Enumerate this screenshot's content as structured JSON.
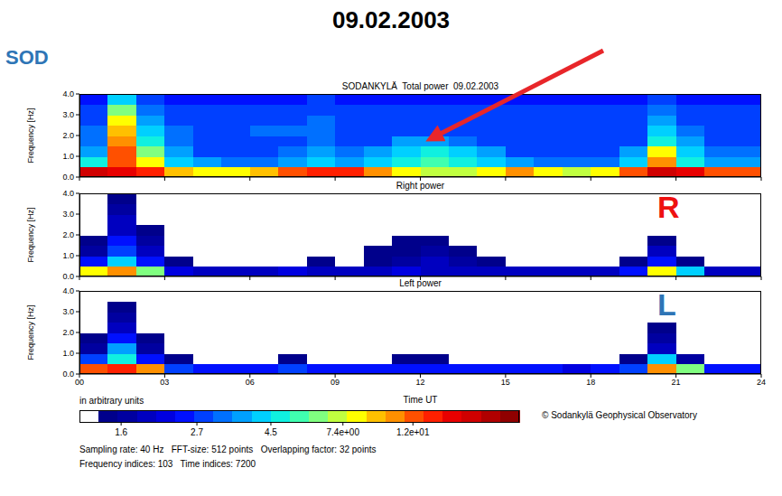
{
  "title": "09.02.2003",
  "label": "SOD",
  "chart_data": [
    {
      "type": "heatmap",
      "title": "SODANKYLÄ  Total power  09.02.2003",
      "ylabel": "Frequency [Hz]",
      "xlim": [
        0,
        24
      ],
      "xticks": [
        {
          "value": 0,
          "label": "00"
        },
        {
          "value": 3,
          "label": "03"
        },
        {
          "value": 6,
          "label": "06"
        },
        {
          "value": 9,
          "label": "09"
        },
        12,
        15,
        18,
        21,
        24
      ],
      "ylim": [
        0,
        4
      ],
      "yticks": [
        {
          "value": 0,
          "label": "0.0"
        },
        {
          "value": 1,
          "label": "1.0"
        },
        {
          "value": 2,
          "label": "2.0"
        },
        {
          "value": 3,
          "label": "3.0"
        },
        {
          "value": 4,
          "label": "4.0"
        }
      ],
      "tick_labels": "y",
      "x_bins": [
        0,
        1,
        2,
        3,
        4,
        5,
        6,
        7,
        8,
        9,
        10,
        11,
        12,
        13,
        14,
        15,
        16,
        17,
        18,
        19,
        20,
        21,
        22,
        23,
        24
      ],
      "y_bins": [
        0,
        0.5,
        1,
        1.5,
        2,
        2.5,
        3,
        3.5,
        4
      ],
      "cells": [
        [
          18,
          16,
          14,
          9,
          8,
          8,
          9,
          12,
          14,
          14,
          10,
          8,
          7,
          7,
          8,
          10,
          8,
          7,
          8,
          12,
          18,
          16,
          12,
          12
        ],
        [
          5,
          12,
          8,
          4,
          3.5,
          3.2,
          3.2,
          3.5,
          4,
          3.5,
          4,
          5,
          5.5,
          5,
          4,
          3.5,
          3.2,
          3.2,
          3.2,
          4,
          10,
          5,
          3.5,
          3.5
        ],
        [
          3.5,
          12,
          6,
          3.5,
          3,
          3,
          3,
          3.2,
          3.5,
          3.2,
          3.5,
          4,
          4.5,
          4,
          3.5,
          3,
          3,
          3,
          3,
          3.5,
          8,
          4,
          3.2,
          3.2
        ],
        [
          3.2,
          10,
          5,
          3.2,
          3,
          3,
          3,
          3,
          3.2,
          3,
          3,
          3.5,
          3.5,
          3.2,
          3,
          3,
          3,
          3,
          3,
          3,
          4.5,
          3.5,
          3,
          3
        ],
        [
          3.2,
          9,
          4,
          3.2,
          3,
          3,
          3.2,
          3.2,
          3.2,
          3,
          3,
          3,
          3,
          3,
          3,
          3,
          3,
          3,
          3,
          3,
          4,
          3.2,
          3,
          3
        ],
        [
          3,
          8,
          3.5,
          3,
          3,
          3,
          3,
          3,
          3.2,
          3,
          3,
          3,
          3,
          3,
          3,
          3,
          3,
          3,
          3,
          3,
          3.5,
          3,
          3,
          3
        ],
        [
          2.7,
          6,
          3.2,
          2.7,
          2.7,
          2.7,
          2.7,
          2.7,
          3,
          2.7,
          2.7,
          2.7,
          2.7,
          2.7,
          2.7,
          2.7,
          2.7,
          2.7,
          2.7,
          2.7,
          3.2,
          2.7,
          2.7,
          2.7
        ],
        [
          2.4,
          4,
          2.7,
          2.4,
          2.4,
          2.4,
          2.4,
          2.4,
          2.7,
          2.4,
          2.4,
          2.4,
          2.4,
          2.4,
          2.4,
          2.4,
          2.4,
          2.4,
          2.4,
          2.4,
          2.7,
          2.4,
          2.4,
          2.4
        ]
      ]
    },
    {
      "type": "heatmap",
      "title": "Right power",
      "ylabel": "Frequency [Hz]",
      "xlim": [
        0,
        24
      ],
      "xticks": [
        {
          "value": 0,
          "label": "00"
        },
        {
          "value": 3,
          "label": "03"
        },
        {
          "value": 6,
          "label": "06"
        },
        {
          "value": 9,
          "label": "09"
        },
        12,
        15,
        18,
        21,
        24
      ],
      "ylim": [
        0,
        4
      ],
      "yticks": [
        {
          "value": 0,
          "label": "0.0"
        },
        {
          "value": 1,
          "label": "1.0"
        },
        {
          "value": 2,
          "label": "2.0"
        },
        {
          "value": 3,
          "label": "3.0"
        },
        {
          "value": 4,
          "label": "4.0"
        }
      ],
      "tick_labels": "y",
      "annotation": {
        "text": "R",
        "color": "#ee1111"
      },
      "x_bins": [
        0,
        1,
        2,
        3,
        4,
        5,
        6,
        7,
        8,
        9,
        10,
        11,
        12,
        13,
        14,
        15,
        16,
        17,
        18,
        19,
        20,
        21,
        22,
        23,
        24
      ],
      "y_bins": [
        0,
        0.5,
        1,
        1.5,
        2,
        2.5,
        3,
        3.5,
        4
      ],
      "cells": [
        [
          8,
          10,
          6,
          2.2,
          2,
          2,
          2,
          2.2,
          2,
          2,
          2,
          2.2,
          2,
          2,
          2,
          2,
          2,
          2,
          2,
          2.5,
          8,
          4,
          2,
          2
        ],
        [
          2.5,
          4,
          2.5,
          1.4,
          1.3,
          1.3,
          1.3,
          1.3,
          1.4,
          1.3,
          1.4,
          1.6,
          1.8,
          1.6,
          1.4,
          1.3,
          1.3,
          1.3,
          1.3,
          1.4,
          2.5,
          1.4,
          1.3,
          1.3
        ],
        [
          1.6,
          3,
          1.8,
          1.3,
          1.3,
          1.3,
          1.3,
          1.3,
          1.3,
          1.3,
          1.4,
          1.4,
          1.6,
          1.4,
          1.3,
          1.3,
          1.3,
          1.3,
          1.3,
          1.3,
          1.8,
          1.3,
          1.3,
          1.3
        ],
        [
          1.4,
          2.5,
          1.6,
          1.3,
          1.3,
          1.3,
          1.3,
          1.3,
          1.3,
          1.3,
          1.3,
          1.4,
          1.4,
          1.3,
          1.3,
          1.3,
          1.3,
          1.3,
          1.3,
          1.3,
          1.4,
          1.3,
          1.3,
          1.3
        ],
        [
          1.3,
          2,
          1.4,
          1.3,
          1.3,
          1.3,
          1.3,
          1.3,
          1.3,
          1.3,
          1.3,
          1.3,
          1.3,
          1.3,
          1.3,
          1.3,
          1.3,
          1.3,
          1.3,
          1.3,
          1.3,
          1.3,
          1.3,
          1.3
        ],
        [
          1.3,
          1.8,
          1.3,
          1.3,
          1.3,
          1.3,
          1.3,
          1.3,
          1.3,
          1.3,
          1.3,
          1.3,
          1.3,
          1.3,
          1.3,
          1.3,
          1.3,
          1.3,
          1.3,
          1.3,
          1.3,
          1.3,
          1.3,
          1.3
        ],
        [
          1.3,
          1.6,
          1.3,
          1.3,
          1.3,
          1.3,
          1.3,
          1.3,
          1.3,
          1.3,
          1.3,
          1.3,
          1.3,
          1.3,
          1.3,
          1.3,
          1.3,
          1.3,
          1.3,
          1.3,
          1.3,
          1.3,
          1.3,
          1.3
        ],
        [
          1.3,
          1.4,
          1.3,
          1.3,
          1.3,
          1.3,
          1.3,
          1.3,
          1.3,
          1.3,
          1.3,
          1.3,
          1.3,
          1.3,
          1.3,
          1.3,
          1.3,
          1.3,
          1.3,
          1.3,
          1.3,
          1.3,
          1.3,
          1.3
        ]
      ]
    },
    {
      "type": "heatmap",
      "title": "Left power",
      "xlabel": "Time UT",
      "ylabel": "Frequency [Hz]",
      "xlim": [
        0,
        24
      ],
      "xticks": [
        {
          "value": 0,
          "label": "00"
        },
        {
          "value": 3,
          "label": "03"
        },
        {
          "value": 6,
          "label": "06"
        },
        {
          "value": 9,
          "label": "09"
        },
        12,
        15,
        18,
        21,
        24
      ],
      "ylim": [
        0,
        4
      ],
      "yticks": [
        {
          "value": 0,
          "label": "0.0"
        },
        {
          "value": 1,
          "label": "1.0"
        },
        {
          "value": 2,
          "label": "2.0"
        },
        {
          "value": 3,
          "label": "3.0"
        },
        {
          "value": 4,
          "label": "4.0"
        }
      ],
      "annotation": {
        "text": "L",
        "color": "#2e75b6"
      },
      "x_bins": [
        0,
        1,
        2,
        3,
        4,
        5,
        6,
        7,
        8,
        9,
        10,
        11,
        12,
        13,
        14,
        15,
        16,
        17,
        18,
        19,
        20,
        21,
        22,
        23,
        24
      ],
      "y_bins": [
        0,
        0.5,
        1,
        1.5,
        2,
        2.5,
        3,
        3.5,
        4
      ],
      "cells": [
        [
          12,
          14,
          10,
          3,
          2.5,
          2.5,
          2.5,
          3,
          2.5,
          2.5,
          2.5,
          2.5,
          2.5,
          2.5,
          2.5,
          2.5,
          2.5,
          2.2,
          2.5,
          3,
          10,
          6,
          2.5,
          2.5
        ],
        [
          3,
          4.5,
          2.5,
          1.4,
          1.3,
          1.3,
          1.3,
          1.4,
          1.3,
          1.3,
          1.3,
          1.4,
          1.4,
          1.3,
          1.3,
          1.3,
          1.3,
          1.3,
          1.3,
          1.4,
          4,
          1.6,
          1.3,
          1.3
        ],
        [
          1.6,
          3.5,
          1.6,
          1.3,
          1.3,
          1.3,
          1.3,
          1.3,
          1.3,
          1.3,
          1.3,
          1.3,
          1.3,
          1.3,
          1.3,
          1.3,
          1.3,
          1.3,
          1.3,
          1.3,
          2,
          1.3,
          1.3,
          1.3
        ],
        [
          1.4,
          2.5,
          1.4,
          1.3,
          1.3,
          1.3,
          1.3,
          1.3,
          1.3,
          1.3,
          1.3,
          1.3,
          1.3,
          1.3,
          1.3,
          1.3,
          1.3,
          1.3,
          1.3,
          1.3,
          1.6,
          1.3,
          1.3,
          1.3
        ],
        [
          1.3,
          2,
          1.3,
          1.3,
          1.3,
          1.3,
          1.3,
          1.3,
          1.3,
          1.3,
          1.3,
          1.3,
          1.3,
          1.3,
          1.3,
          1.3,
          1.3,
          1.3,
          1.3,
          1.3,
          1.4,
          1.3,
          1.3,
          1.3
        ],
        [
          1.3,
          1.6,
          1.3,
          1.3,
          1.3,
          1.3,
          1.3,
          1.3,
          1.3,
          1.3,
          1.3,
          1.3,
          1.3,
          1.3,
          1.3,
          1.3,
          1.3,
          1.3,
          1.3,
          1.3,
          1.3,
          1.3,
          1.3,
          1.3
        ],
        [
          1.3,
          1.4,
          1.3,
          1.3,
          1.3,
          1.3,
          1.3,
          1.3,
          1.3,
          1.3,
          1.3,
          1.3,
          1.3,
          1.3,
          1.3,
          1.3,
          1.3,
          1.3,
          1.3,
          1.3,
          1.3,
          1.3,
          1.3,
          1.3
        ],
        [
          1.3,
          1.3,
          1.3,
          1.3,
          1.3,
          1.3,
          1.3,
          1.3,
          1.3,
          1.3,
          1.3,
          1.3,
          1.3,
          1.3,
          1.3,
          1.3,
          1.3,
          1.3,
          1.3,
          1.3,
          1.3,
          1.3,
          1.3,
          1.3
        ]
      ]
    }
  ],
  "colorbar": {
    "label": "in arbitrary units",
    "range": [
      1.2,
      25
    ],
    "log": true,
    "ticks": [
      1.6,
      2.7,
      4.5,
      {
        "value": 7.4,
        "label": "7.4e+00"
      },
      {
        "value": 12,
        "label": "1.2e+01"
      }
    ]
  },
  "copyright": "© Sodankylä Geophysical Observatory",
  "footer": [
    "Sampling rate: 40 Hz   FFT-size: 512 points   Overlapping factor: 32 points",
    "Frequency indices: 103   Time indices: 7200"
  ]
}
